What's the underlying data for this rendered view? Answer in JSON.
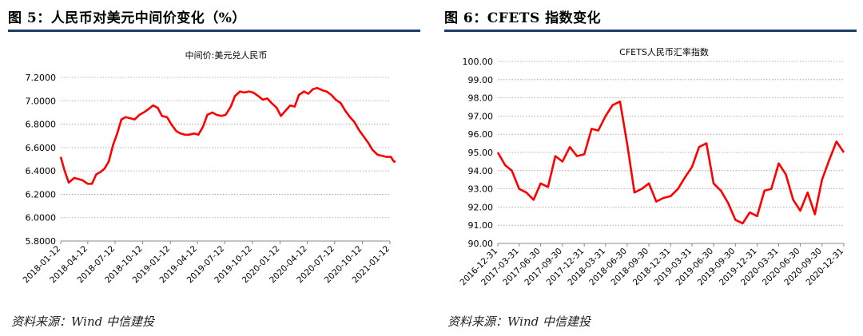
{
  "figures": [
    {
      "figure_title": "图 5：人民币对美元中间价变化（%）",
      "source": "资料来源：Wind 中信建投"
    },
    {
      "figure_title": "图 6：CFETS 指数变化",
      "source": "资料来源：Wind 中信建投"
    }
  ],
  "colors": {
    "line": "#ff0000",
    "rule": "#1f3d6b",
    "grid": "#9a9a9a",
    "axis": "#888888"
  },
  "chart_data": [
    {
      "type": "line",
      "title": "中间价:美元兑人民币",
      "xlabel": "",
      "ylabel": "",
      "ylim": [
        5.8,
        7.2
      ],
      "y_ticks": [
        "5.8000",
        "6.0000",
        "6.2000",
        "6.4000",
        "6.6000",
        "6.8000",
        "7.0000",
        "7.2000"
      ],
      "x_ticks": [
        "2018-01-12",
        "2018-04-12",
        "2018-07-12",
        "2018-10-12",
        "2019-01-12",
        "2019-04-12",
        "2019-07-12",
        "2019-10-12",
        "2020-01-12",
        "2020-04-12",
        "2020-07-12",
        "2020-10-12",
        "2021-01-12"
      ],
      "grid": true,
      "series": [
        {
          "x": [
            "2018-01-12",
            "2018-01-25",
            "2018-02-08",
            "2018-02-26",
            "2018-03-12",
            "2018-03-26",
            "2018-04-12",
            "2018-04-26",
            "2018-05-10",
            "2018-05-24",
            "2018-06-07",
            "2018-06-21",
            "2018-07-05",
            "2018-07-19",
            "2018-08-02",
            "2018-08-16",
            "2018-09-01",
            "2018-09-15",
            "2018-10-01",
            "2018-10-15",
            "2018-11-01",
            "2018-11-15",
            "2018-12-01",
            "2018-12-15",
            "2019-01-01",
            "2019-01-15",
            "2019-02-01",
            "2019-02-15",
            "2019-03-01",
            "2019-03-15",
            "2019-04-01",
            "2019-04-15",
            "2019-05-01",
            "2019-05-15",
            "2019-06-01",
            "2019-06-15",
            "2019-07-01",
            "2019-07-15",
            "2019-08-01",
            "2019-08-15",
            "2019-09-01",
            "2019-09-15",
            "2019-10-01",
            "2019-10-15",
            "2019-11-01",
            "2019-11-15",
            "2019-12-01",
            "2019-12-15",
            "2020-01-01",
            "2020-01-15",
            "2020-02-01",
            "2020-02-15",
            "2020-03-01",
            "2020-03-15",
            "2020-04-01",
            "2020-04-15",
            "2020-05-01",
            "2020-05-15",
            "2020-06-01",
            "2020-06-15",
            "2020-07-01",
            "2020-07-15",
            "2020-08-01",
            "2020-08-15",
            "2020-09-01",
            "2020-09-15",
            "2020-10-01",
            "2020-10-15",
            "2020-11-01",
            "2020-11-15",
            "2020-12-01",
            "2020-12-15",
            "2021-01-01",
            "2021-01-15",
            "2021-01-25",
            "2021-01-31"
          ],
          "values": [
            6.52,
            6.4,
            6.3,
            6.34,
            6.33,
            6.32,
            6.29,
            6.29,
            6.37,
            6.39,
            6.42,
            6.48,
            6.62,
            6.72,
            6.84,
            6.86,
            6.85,
            6.84,
            6.88,
            6.9,
            6.93,
            6.96,
            6.94,
            6.87,
            6.86,
            6.8,
            6.74,
            6.72,
            6.71,
            6.71,
            6.72,
            6.71,
            6.78,
            6.88,
            6.9,
            6.88,
            6.87,
            6.88,
            6.95,
            7.04,
            7.08,
            7.07,
            7.08,
            7.07,
            7.04,
            7.01,
            7.02,
            6.98,
            6.94,
            6.87,
            6.92,
            6.96,
            6.95,
            7.05,
            7.08,
            7.06,
            7.1,
            7.11,
            7.09,
            7.08,
            7.05,
            7.01,
            6.98,
            6.92,
            6.86,
            6.82,
            6.75,
            6.7,
            6.64,
            6.58,
            6.54,
            6.53,
            6.52,
            6.52,
            6.48,
            6.48
          ]
        }
      ]
    },
    {
      "type": "line",
      "title": "CFETS人民币汇率指数",
      "xlabel": "",
      "ylabel": "",
      "ylim": [
        90,
        100
      ],
      "y_ticks": [
        "90.00",
        "91.00",
        "92.00",
        "93.00",
        "94.00",
        "95.00",
        "96.00",
        "97.00",
        "98.00",
        "99.00",
        "100.00"
      ],
      "x_ticks": [
        "2016-12-31",
        "2017-03-31",
        "2017-06-30",
        "2017-09-30",
        "2017-12-31",
        "2018-03-31",
        "2018-06-30",
        "2018-09-30",
        "2018-12-31",
        "2019-03-31",
        "2019-06-30",
        "2019-09-30",
        "2019-12-31",
        "2020-03-31",
        "2020-06-30",
        "2020-09-30",
        "2020-12-31"
      ],
      "grid": true,
      "series": [
        {
          "x": [
            "2016-12-31",
            "2017-01-31",
            "2017-02-28",
            "2017-03-31",
            "2017-04-30",
            "2017-05-31",
            "2017-06-30",
            "2017-07-31",
            "2017-08-31",
            "2017-09-30",
            "2017-10-31",
            "2017-11-30",
            "2017-12-31",
            "2018-01-31",
            "2018-02-28",
            "2018-03-31",
            "2018-04-30",
            "2018-05-31",
            "2018-06-30",
            "2018-07-31",
            "2018-08-31",
            "2018-09-30",
            "2018-10-31",
            "2018-11-30",
            "2018-12-31",
            "2019-01-31",
            "2019-02-28",
            "2019-03-31",
            "2019-04-30",
            "2019-05-31",
            "2019-06-30",
            "2019-07-31",
            "2019-08-31",
            "2019-09-30",
            "2019-10-31",
            "2019-11-30",
            "2019-12-31",
            "2020-01-31",
            "2020-02-29",
            "2020-03-31",
            "2020-04-30",
            "2020-05-31",
            "2020-06-30",
            "2020-07-31",
            "2020-08-31",
            "2020-09-30",
            "2020-10-31",
            "2020-11-30",
            "2020-12-31"
          ],
          "values": [
            95.0,
            94.3,
            94.0,
            93.0,
            92.8,
            92.4,
            93.3,
            93.1,
            94.8,
            94.5,
            95.3,
            94.8,
            94.9,
            96.3,
            96.2,
            97.0,
            97.6,
            97.8,
            95.5,
            92.8,
            93.0,
            93.3,
            92.3,
            92.5,
            92.6,
            93.0,
            93.6,
            94.2,
            95.3,
            95.5,
            93.3,
            92.9,
            92.2,
            91.3,
            91.1,
            91.7,
            91.5,
            92.9,
            93.0,
            94.4,
            93.8,
            92.4,
            91.8,
            92.8,
            91.6,
            93.5,
            94.6,
            95.6,
            95.0
          ]
        }
      ]
    }
  ]
}
